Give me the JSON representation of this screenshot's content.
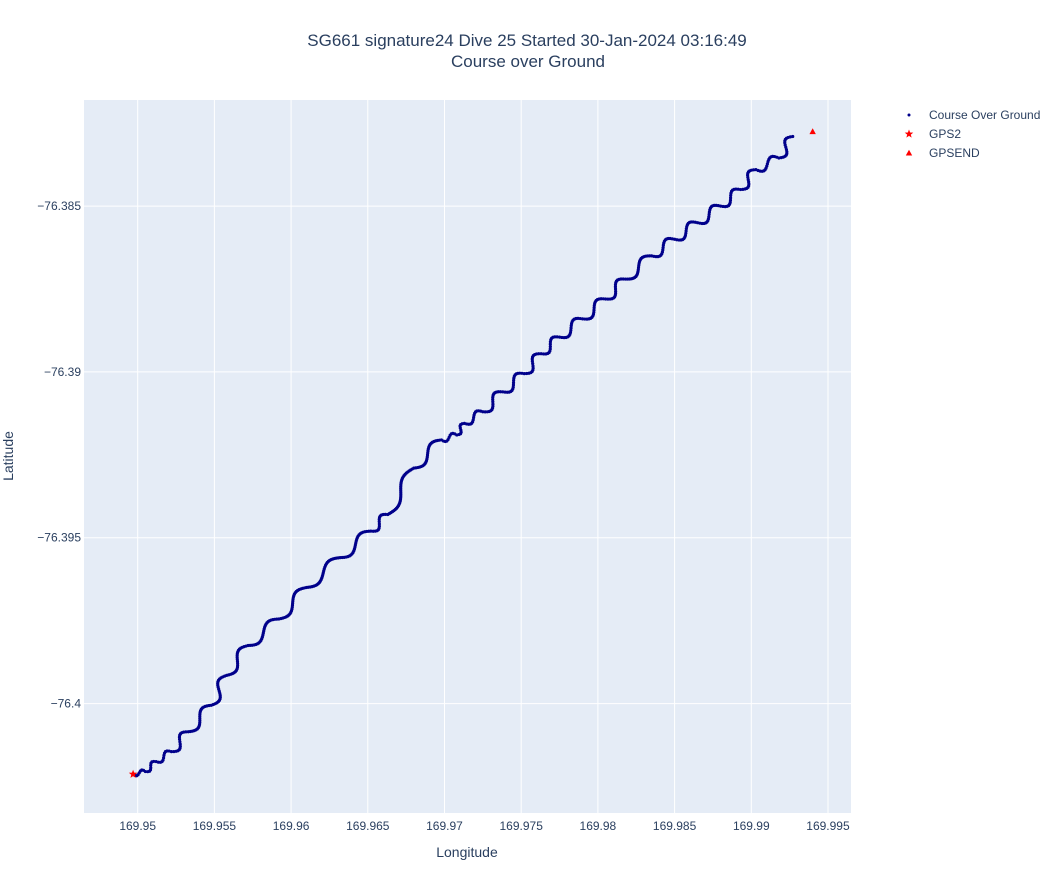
{
  "chart_data": {
    "type": "scatter",
    "title_line1": "SG661 signature24 Dive 25 Started 30-Jan-2024 03:16:49",
    "title_line2": "Course over Ground",
    "xlabel": "Longitude",
    "ylabel": "Latitude",
    "xlim": [
      169.9465,
      169.9965
    ],
    "ylim": [
      -76.4033,
      -76.3818
    ],
    "xticks": [
      169.95,
      169.955,
      169.96,
      169.965,
      169.97,
      169.975,
      169.98,
      169.985,
      169.99,
      169.995
    ],
    "xtick_labels": [
      "169.95",
      "169.955",
      "169.96",
      "169.965",
      "169.97",
      "169.975",
      "169.98",
      "169.985",
      "169.99",
      "169.995"
    ],
    "yticks": [
      -76.385,
      -76.39,
      -76.395,
      -76.4
    ],
    "ytick_labels": [
      "−76.385",
      "−76.39",
      "−76.395",
      "−76.4"
    ],
    "grid": true,
    "legend_position": "top-right outside",
    "colors": {
      "track": "#00008b",
      "gps": "#ff0000",
      "plot_bg": "#e5ecf6",
      "grid": "#ffffff"
    },
    "series": [
      {
        "name": "Course Over Ground",
        "marker": "dot",
        "points": [
          [
            169.9497,
            -76.40213
          ],
          [
            169.9505,
            -76.40205
          ],
          [
            169.9512,
            -76.40175
          ],
          [
            169.9522,
            -76.40145
          ],
          [
            169.9533,
            -76.40085
          ],
          [
            169.9548,
            -76.40005
          ],
          [
            169.9558,
            -76.39915
          ],
          [
            169.9572,
            -76.39825
          ],
          [
            169.9592,
            -76.39745
          ],
          [
            169.961,
            -76.3965
          ],
          [
            169.9632,
            -76.3956
          ],
          [
            169.9652,
            -76.3948
          ],
          [
            169.9663,
            -76.3943
          ],
          [
            169.968,
            -76.3929
          ],
          [
            169.9698,
            -76.39205
          ],
          [
            169.9708,
            -76.3919
          ],
          [
            169.9713,
            -76.39155
          ],
          [
            169.9725,
            -76.3912
          ],
          [
            169.9738,
            -76.3906
          ],
          [
            169.9752,
            -76.39005
          ],
          [
            169.9763,
            -76.38945
          ],
          [
            169.9775,
            -76.38895
          ],
          [
            169.979,
            -76.3884
          ],
          [
            169.9805,
            -76.3878
          ],
          [
            169.9818,
            -76.3872
          ],
          [
            169.9835,
            -76.3865
          ],
          [
            169.985,
            -76.386
          ],
          [
            169.9865,
            -76.3855
          ],
          [
            169.988,
            -76.385
          ],
          [
            169.9893,
            -76.3845
          ],
          [
            169.9903,
            -76.3839
          ],
          [
            169.9918,
            -76.38355
          ],
          [
            169.9927,
            -76.3829
          ]
        ]
      },
      {
        "name": "GPS2",
        "marker": "star",
        "points": [
          [
            169.9497,
            -76.40213
          ]
        ]
      },
      {
        "name": "GPSEND",
        "marker": "triangle-up",
        "points": [
          [
            169.994,
            -76.38275
          ]
        ]
      }
    ]
  }
}
